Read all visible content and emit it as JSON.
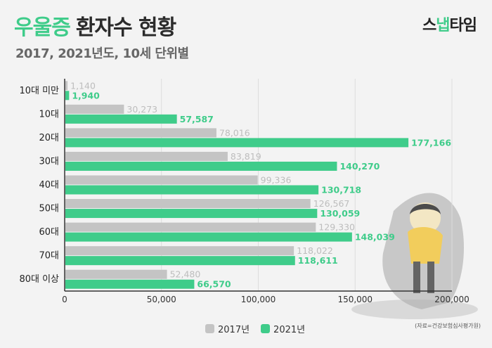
{
  "header": {
    "title_accent": "우울증",
    "title_rest": "환자수 현황",
    "subtitle": "2017, 2021년도, 10세 단위별",
    "logo_main": "스",
    "logo_accent": "냅",
    "logo_tail": "타임"
  },
  "source": "(자료=건강보험심사평가원)",
  "colors": {
    "series_2017": "#c4c4c4",
    "series_2021": "#3fcc8a",
    "label_2017": "#bdbdbd",
    "label_2021": "#3fcc8a",
    "axis": "#333333",
    "grid": "#dddddd"
  },
  "chart_data": {
    "type": "bar",
    "orientation": "horizontal",
    "categories": [
      "10대 미만",
      "10대",
      "20대",
      "30대",
      "40대",
      "50대",
      "60대",
      "70대",
      "80대 이상"
    ],
    "series": [
      {
        "name": "2017년",
        "values": [
          1140,
          30273,
          78016,
          83819,
          99336,
          126567,
          129330,
          118022,
          52480
        ],
        "labels": [
          "1,140",
          "30,273",
          "78,016",
          "83,819",
          "99,336",
          "126,567",
          "129,330",
          "118,022",
          "52,480"
        ]
      },
      {
        "name": "2021년",
        "values": [
          1940,
          57587,
          177166,
          140270,
          130718,
          130059,
          148039,
          118611,
          66570
        ],
        "labels": [
          "1,940",
          "57,587",
          "177,166",
          "140,270",
          "130,718",
          "130,059",
          "148,039",
          "118,611",
          "66,570"
        ]
      }
    ],
    "xlim": [
      0,
      200000
    ],
    "x_ticks": [
      0,
      50000,
      100000,
      150000,
      200000
    ],
    "x_tick_labels": [
      "0",
      "50,000",
      "100,000",
      "150,000",
      "200,000"
    ],
    "grid": true,
    "legend_position": "bottom"
  }
}
